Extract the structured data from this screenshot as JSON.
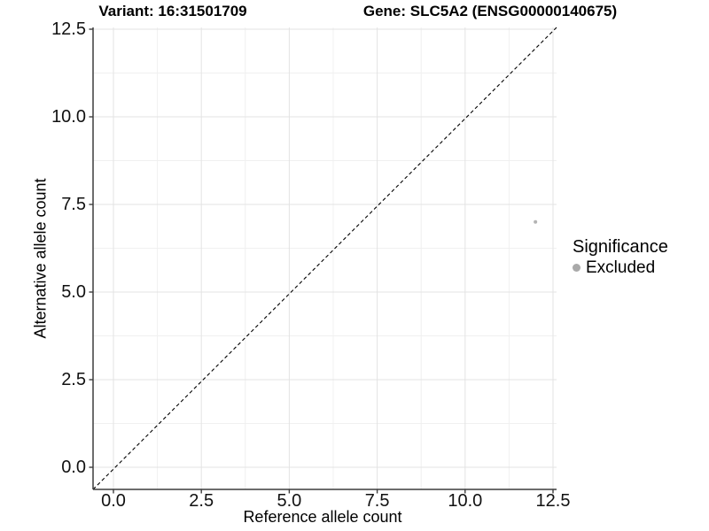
{
  "titles": {
    "variant": "Variant: 16:31501709",
    "gene": "Gene: SLC5A2 (ENSG00000140675)"
  },
  "x_axis": {
    "label": "Reference allele count",
    "tick_labels": [
      "0.0",
      "2.5",
      "5.0",
      "7.5",
      "10.0",
      "12.5"
    ]
  },
  "y_axis": {
    "label": "Alternative allele count",
    "tick_labels": [
      "0.0",
      "2.5",
      "5.0",
      "7.5",
      "10.0",
      "12.5"
    ]
  },
  "legend": {
    "title": "Significance",
    "items": [
      {
        "label": "Excluded",
        "marker": "circle-icon",
        "color": "#a9a9a9"
      }
    ]
  },
  "colors": {
    "background": "#ffffff",
    "point": "#b3b3b3",
    "grid_major": "#e3e3e3",
    "grid_minor": "#f0f0f0",
    "axis_line": "#3d3d3d",
    "reference_line": "#000000",
    "text": "#000000"
  },
  "chart_data": {
    "type": "scatter",
    "title": "Variant: 16:31501709 | Gene: SLC5A2 (ENSG00000140675)",
    "xlabel": "Reference allele count",
    "ylabel": "Alternative allele count",
    "x_ticks": [
      0,
      2.5,
      5,
      7.5,
      10,
      12.5
    ],
    "y_ticks": [
      0,
      2.5,
      5,
      7.5,
      10,
      12.5
    ],
    "xlim": [
      -0.65,
      12.6
    ],
    "ylim": [
      -0.65,
      12.6
    ],
    "grid": true,
    "grid_minor": true,
    "legend_position": "right",
    "series": [
      {
        "name": "Excluded",
        "color": "#b3b3b3",
        "marker_radius_px": 2,
        "points": [
          [
            12,
            7
          ]
        ]
      }
    ],
    "reference_line": {
      "equation": "y = x",
      "style": "dashed",
      "start": [
        -0.65,
        -0.65
      ],
      "end": [
        12.6,
        12.6
      ]
    }
  }
}
